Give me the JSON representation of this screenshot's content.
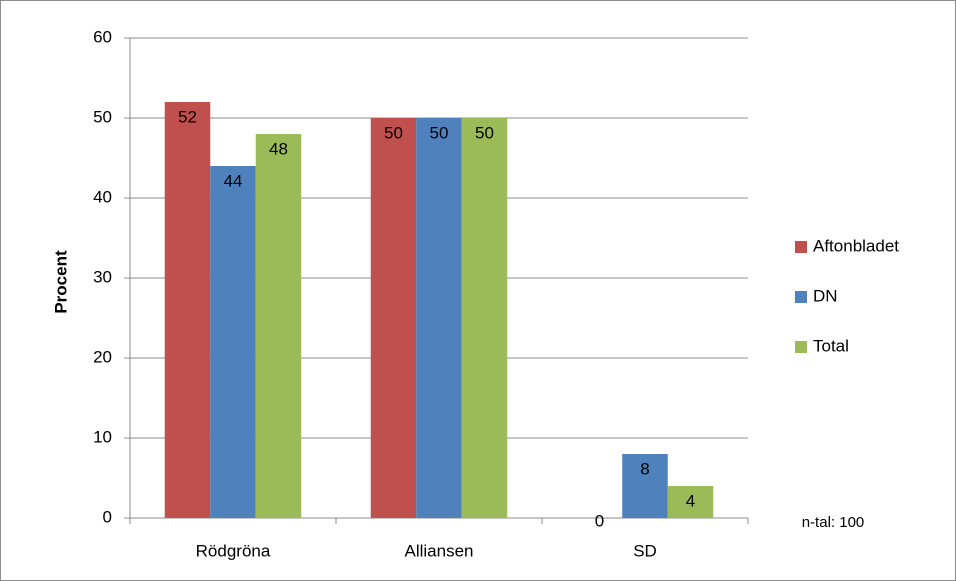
{
  "chart_data": {
    "type": "bar",
    "categories": [
      "Rödgröna",
      "Alliansen",
      "SD"
    ],
    "series": [
      {
        "name": "Aftonbladet",
        "color": "#c0504d",
        "values": [
          52,
          50,
          0
        ]
      },
      {
        "name": "DN",
        "color": "#4f81bd",
        "values": [
          44,
          50,
          8
        ]
      },
      {
        "name": "Total",
        "color": "#9bbb59",
        "values": [
          48,
          50,
          4
        ]
      }
    ],
    "y_label": "Procent",
    "ylim": [
      0,
      60
    ],
    "yticks": [
      0,
      10,
      20,
      30,
      40,
      50,
      60
    ],
    "grid": true,
    "legend": "right",
    "annotation": "n-tal: 100"
  }
}
